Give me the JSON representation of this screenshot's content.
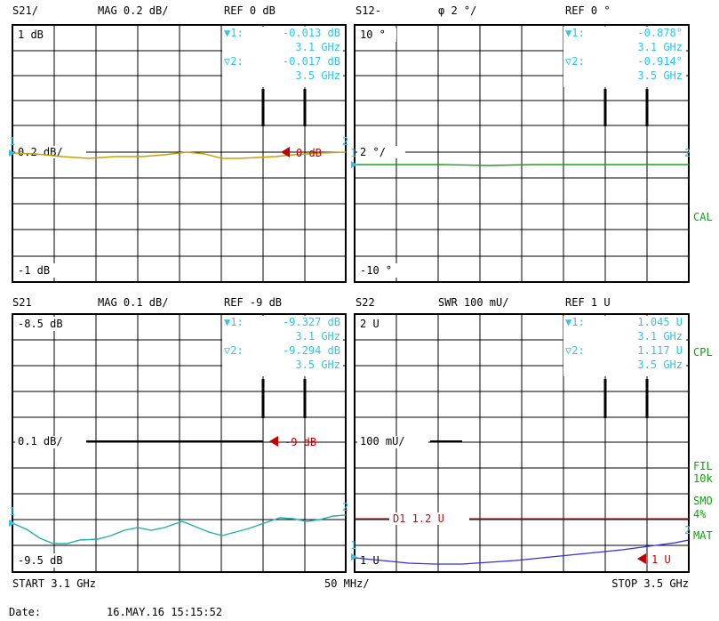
{
  "colors": {
    "grid": "#000000",
    "marker_cyan": "#2ec6e8",
    "ref_red": "#c00000",
    "trace_s21_mag": "#c8a000",
    "trace_s12_phase": "#20a020",
    "trace_s21_fine": "#20b0b0",
    "trace_s22_swr": "#3030e0",
    "side_green": "#10a010",
    "limit_brown": "#a02020"
  },
  "panels": [
    {
      "id": "s21-mag-coarse",
      "header": {
        "param": "S21",
        "param_suffix": "/",
        "format": "MAG 0.2 dB/",
        "ref": "REF 0 dB"
      },
      "top_label": "1 dB",
      "bottom_label": "-1 dB",
      "scale_label": "0.2 dB",
      "ref_marker": "0 dB",
      "marker1": {
        "label": "1:",
        "value": "-0.013 dB",
        "freq": "3.1 GHz"
      },
      "marker2": {
        "label": "2:",
        "value": "-0.017 dB",
        "freq": "3.5 GHz"
      },
      "trace_color": "#c8a000"
    },
    {
      "id": "s12-phase",
      "header": {
        "param": "S12",
        "param_suffix": "-",
        "format": "φ   2 °/",
        "ref": "REF 0 °"
      },
      "top_label": "10 °",
      "bottom_label": "-10 °",
      "scale_label": "2 °",
      "ref_marker": "",
      "marker1": {
        "label": "1:",
        "value": "-0.878°",
        "freq": "3.1 GHz"
      },
      "marker2": {
        "label": "2:",
        "value": "-0.914°",
        "freq": "3.5 GHz"
      },
      "trace_color": "#20a020"
    },
    {
      "id": "s21-mag-fine",
      "header": {
        "param": "S21",
        "param_suffix": "",
        "format": "MAG 0.1 dB/",
        "ref": "REF -9 dB"
      },
      "top_label": "-8.5 dB",
      "bottom_label": "-9.5 dB",
      "scale_label": "0.1 dB",
      "ref_marker": "-9 dB",
      "marker1": {
        "label": "1:",
        "value": "-9.327 dB",
        "freq": "3.1 GHz"
      },
      "marker2": {
        "label": "2:",
        "value": "-9.294 dB",
        "freq": "3.5 GHz"
      },
      "trace_color": "#20b0b0"
    },
    {
      "id": "s22-swr",
      "header": {
        "param": "S22",
        "param_suffix": "",
        "format": "SWR 100 mU/",
        "ref": "REF 1 U"
      },
      "top_label": "2 U",
      "bottom_label": "1 U",
      "scale_label": "100 mU",
      "ref_marker": "1 U",
      "limit_line": "D1  1.2  U",
      "marker1": {
        "label": "1:",
        "value": "1.045  U",
        "freq": "3.1 GHz"
      },
      "marker2": {
        "label": "2:",
        "value": "1.117  U",
        "freq": "3.5 GHz"
      },
      "trace_color": "#3030e0"
    }
  ],
  "side_labels": {
    "cal": "CAL",
    "cpl": "CPL",
    "fil": "FIL",
    "fil_value": "10k",
    "smo": "SMO",
    "smo_value": "4%",
    "mat": "MAT"
  },
  "footer": {
    "start": "START  3.1 GHz",
    "span": "50 MHz/",
    "stop": "STOP 3.5 GHz",
    "date_label": "Date:",
    "date_value": "16.MAY.16  15:15:52"
  },
  "marker_numbers": {
    "m1": "1",
    "m2": "2"
  }
}
